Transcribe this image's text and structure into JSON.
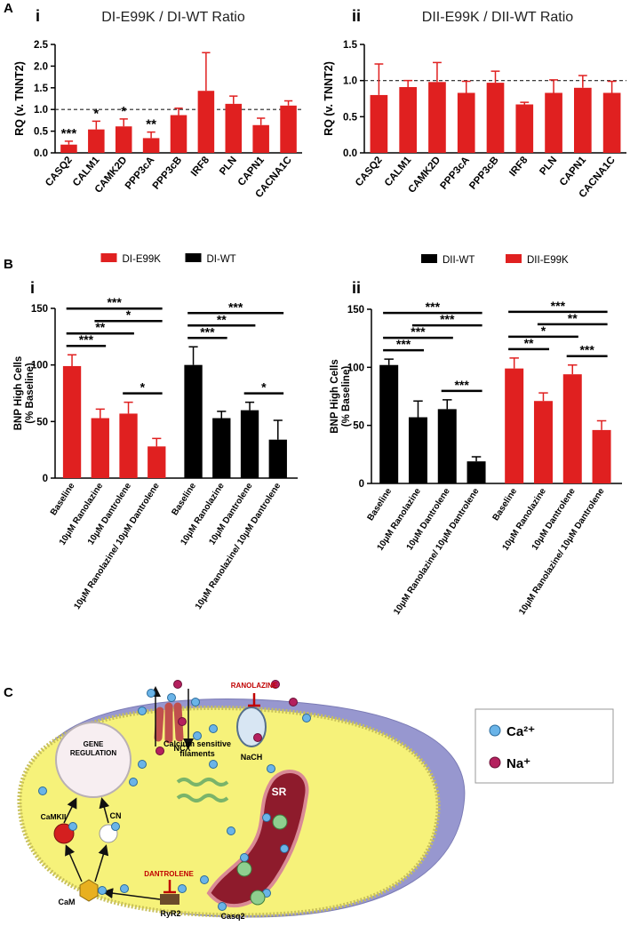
{
  "chart_data": [
    {
      "type": "bar",
      "panel": "A",
      "subpanel": "i",
      "title": "DI-E99K / DI-WT Ratio",
      "ylabel": "RQ (v. TNNT2)",
      "color": "#e02020",
      "categories": [
        "CASQ2",
        "CALM1",
        "CAMK2D",
        "PPP3cA",
        "PPP3cB",
        "IRF8",
        "PLN",
        "CAPN1",
        "CACNA1C"
      ],
      "values": [
        0.19,
        0.54,
        0.61,
        0.34,
        0.87,
        1.43,
        1.13,
        0.64,
        1.09
      ],
      "errors": [
        0.08,
        0.19,
        0.17,
        0.14,
        0.16,
        0.88,
        0.18,
        0.16,
        0.11
      ],
      "significance": [
        "***",
        "*",
        "*",
        "**",
        null,
        null,
        null,
        null,
        null
      ],
      "ylim": [
        0,
        2.5
      ],
      "yticks": [
        {
          "value": 0,
          "label": "0.0"
        },
        0.5,
        {
          "value": 1,
          "label": "1.0"
        },
        1.5,
        {
          "value": 2,
          "label": "2.0"
        },
        2.5
      ],
      "reference_line": 1
    },
    {
      "type": "bar",
      "subpanel": "ii",
      "title": "DII-E99K / DII-WT Ratio",
      "ylabel": "RQ (v. TNNT2)",
      "color": "#e02020",
      "categories": [
        "CASQ2",
        "CALM1",
        "CAMK2D",
        "PPP3cA",
        "PPP3cB",
        "IRF8",
        "PLN",
        "CAPN1",
        "CACNA1C"
      ],
      "values": [
        0.8,
        0.91,
        0.98,
        0.83,
        0.97,
        0.67,
        0.83,
        0.9,
        0.83
      ],
      "errors": [
        0.43,
        0.09,
        0.27,
        0.16,
        0.16,
        0.03,
        0.18,
        0.17,
        0.16
      ],
      "ylim": [
        0,
        1.5
      ],
      "yticks": [
        {
          "value": 0,
          "label": "0.0"
        },
        0.5,
        {
          "value": 1,
          "label": "1.0"
        },
        1.5
      ],
      "reference_line": 1
    },
    {
      "type": "grouped_bar",
      "panel": "B",
      "subpanel": "i",
      "ylabel": [
        "BNP High Cells",
        "(% Baseline)"
      ],
      "categories": [
        "Baseline",
        "10μM Ranolazine",
        "10μM Dantrolene",
        "10μM Ranolazine/ 10μM Dantrolene"
      ],
      "series": [
        {
          "name": "DI-E99K",
          "color": "#e02020",
          "values": [
            99,
            53,
            57,
            28
          ],
          "errors": [
            10,
            8,
            10,
            7
          ]
        },
        {
          "name": "DI-WT",
          "color": "#000000",
          "values": [
            100,
            53,
            60,
            34
          ],
          "errors": [
            16,
            6,
            7,
            17
          ]
        }
      ],
      "brackets": [
        {
          "series": 0,
          "from": 0,
          "to": 3,
          "label": "***"
        },
        {
          "series": 0,
          "from": 0,
          "to": 2,
          "label": "**"
        },
        {
          "series": 0,
          "from": 0,
          "to": 1,
          "label": "***"
        },
        {
          "series": 0,
          "from": 1,
          "to": 3,
          "label": "*"
        },
        {
          "series": 0,
          "from": 2,
          "to": 3,
          "label": "*"
        },
        {
          "series": 1,
          "from": 0,
          "to": 3,
          "label": "***"
        },
        {
          "series": 1,
          "from": 0,
          "to": 2,
          "label": "**"
        },
        {
          "series": 1,
          "from": 0,
          "to": 1,
          "label": "***"
        },
        {
          "series": 1,
          "from": 2,
          "to": 3,
          "label": "*"
        }
      ],
      "ylim": [
        0,
        150
      ],
      "yticks": [
        0,
        50,
        100,
        150
      ]
    },
    {
      "type": "grouped_bar",
      "subpanel": "ii",
      "ylabel": [
        "BNP High Cells",
        "(% Baseline)"
      ],
      "categories": [
        "Baseline",
        "10μM Ranolazine",
        "10μM Dantrolene",
        "10μM Ranolazine/ 10μM Dantrolene"
      ],
      "series": [
        {
          "name": "DII-WT",
          "color": "#000000",
          "values": [
            102,
            57,
            64,
            19
          ],
          "errors": [
            5,
            14,
            8,
            4
          ]
        },
        {
          "name": "DII-E99K",
          "color": "#e02020",
          "values": [
            99,
            71,
            94,
            46
          ],
          "errors": [
            9,
            7,
            8,
            8
          ]
        }
      ],
      "brackets": [
        {
          "series": 0,
          "from": 0,
          "to": 3,
          "label": "***"
        },
        {
          "series": 0,
          "from": 0,
          "to": 2,
          "label": "***"
        },
        {
          "series": 0,
          "from": 0,
          "to": 1,
          "label": "***"
        },
        {
          "series": 0,
          "from": 1,
          "to": 3,
          "label": "***"
        },
        {
          "series": 0,
          "from": 2,
          "to": 3,
          "label": "***"
        },
        {
          "series": 1,
          "from": 0,
          "to": 3,
          "label": "***"
        },
        {
          "series": 1,
          "from": 0,
          "to": 2,
          "label": "*"
        },
        {
          "series": 1,
          "from": 0,
          "to": 1,
          "label": "**"
        },
        {
          "series": 1,
          "from": 2,
          "to": 3,
          "label": "***"
        },
        {
          "series": 1,
          "from": 1,
          "to": 3,
          "label": "**"
        }
      ],
      "ylim": [
        0,
        150
      ],
      "yticks": [
        0,
        50,
        100,
        150
      ]
    }
  ],
  "diagram": {
    "panel": "C",
    "ranolazine": "RANOLAZINE",
    "ncx": "NCX",
    "nach": "NaCH",
    "gene_regulation": [
      "GENE",
      "REGULATION"
    ],
    "filaments": [
      "Calcium sensitive",
      "filaments"
    ],
    "sr": "SR",
    "camkii": "CaMKII",
    "cn": "CN",
    "dantrolene": "DANTROLENE",
    "cam": "CaM",
    "ryr2": "RyR2",
    "casq2": "Casq2",
    "legend": [
      "Ca²⁺",
      "Na⁺"
    ]
  }
}
